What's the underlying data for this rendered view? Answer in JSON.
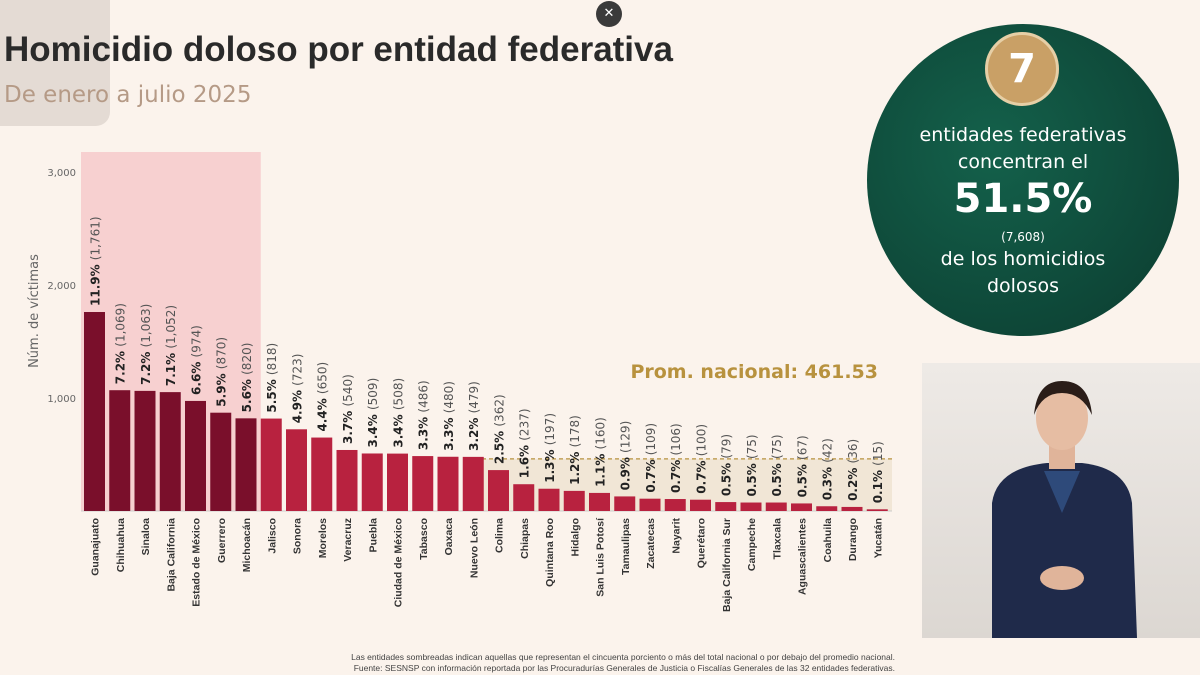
{
  "header": {
    "title": "Homicidio doloso por entidad federativa",
    "subtitle": "De enero a julio 2025",
    "close_icon": "close-icon"
  },
  "callout": {
    "number": "7",
    "line1": "entidades federativas concentran el",
    "percent": "51.5%",
    "count": "(7,608)",
    "line2": "de los homicidios dolosos"
  },
  "footnote": {
    "line1": "Las entidades sombreadas indican aquellas que representan el cincuenta porciento o más del total nacional o por debajo del promedio nacional.",
    "line2": "Fuente: SESNSP con información reportada por las Procuradurías Generales de Justicia o Fiscalías Generales de las 32 entidades federativas."
  },
  "chart_data": {
    "type": "bar",
    "title": "Homicidio doloso por entidad federativa",
    "subtitle": "De enero a julio 2025",
    "ylabel": "Núm. de víctimas",
    "ylim": [
      0,
      3000
    ],
    "yticks": [
      "1,000",
      "2,000",
      "3,000"
    ],
    "ytick_values": [
      1000,
      2000,
      3000
    ],
    "average": 461.53,
    "average_label": "Prom. nacional: 461.53",
    "highlight_count": 7,
    "colors": {
      "highlight": "#7a0f2b",
      "normal": "#b8223f",
      "shade": "#f7d0d0",
      "average": "#b8923e"
    },
    "categories": [
      "Guanajuato",
      "Chihuahua",
      "Sinaloa",
      "Baja California",
      "Estado de México",
      "Guerrero",
      "Michoacán",
      "Jalisco",
      "Sonora",
      "Morelos",
      "Veracruz",
      "Puebla",
      "Ciudad de México",
      "Tabasco",
      "Oaxaca",
      "Nuevo León",
      "Colima",
      "Chiapas",
      "Quintana Roo",
      "Hidalgo",
      "San Luis Potosí",
      "Tamaulipas",
      "Zacatecas",
      "Nayarit",
      "Querétaro",
      "Baja California Sur",
      "Campeche",
      "Tlaxcala",
      "Aguascalientes",
      "Coahuila",
      "Durango",
      "Yucatán"
    ],
    "values": [
      1761,
      1069,
      1063,
      1052,
      974,
      870,
      820,
      818,
      723,
      650,
      540,
      509,
      508,
      486,
      480,
      479,
      362,
      237,
      197,
      178,
      160,
      129,
      109,
      106,
      100,
      79,
      75,
      75,
      67,
      42,
      36,
      15
    ],
    "percents": [
      "11.9%",
      "7.2%",
      "7.2%",
      "7.1%",
      "6.6%",
      "5.9%",
      "5.6%",
      "5.5%",
      "4.9%",
      "4.4%",
      "3.7%",
      "3.4%",
      "3.4%",
      "3.3%",
      "3.3%",
      "3.2%",
      "2.5%",
      "1.6%",
      "1.3%",
      "1.2%",
      "1.1%",
      "0.9%",
      "0.7%",
      "0.7%",
      "0.7%",
      "0.5%",
      "0.5%",
      "0.5%",
      "0.5%",
      "0.3%",
      "0.2%",
      "0.1%"
    ],
    "counts": [
      "(1,761)",
      "(1,069)",
      "(1,063)",
      "(1,052)",
      "(974)",
      "(870)",
      "(820)",
      "(818)",
      "(723)",
      "(650)",
      "(540)",
      "(509)",
      "(508)",
      "(486)",
      "(480)",
      "(479)",
      "(362)",
      "(237)",
      "(197)",
      "(178)",
      "(160)",
      "(129)",
      "(109)",
      "(106)",
      "(100)",
      "(79)",
      "(75)",
      "(75)",
      "(67)",
      "(42)",
      "(36)",
      "(15)"
    ]
  }
}
